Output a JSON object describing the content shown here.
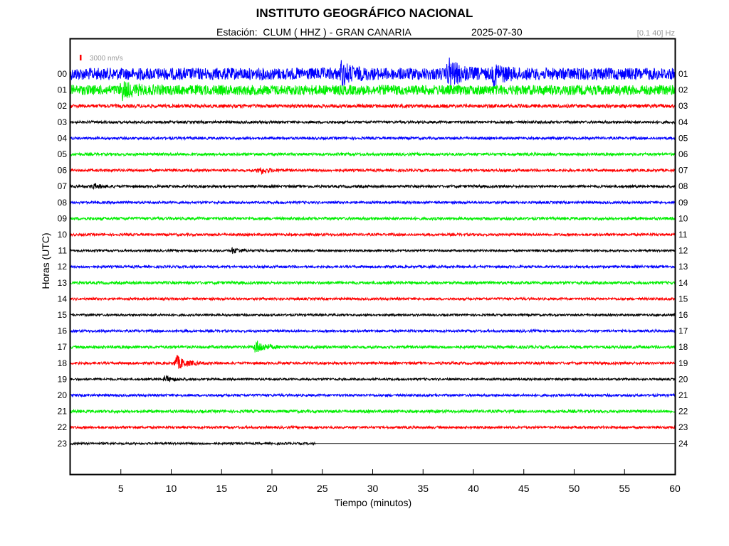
{
  "header": {
    "title": "INSTITUTO GEOGRÁFICO NACIONAL",
    "station_line": "Estación:  CLUM ( HHZ ) - GRAN CANARIA",
    "date": "2025-07-30",
    "filter": "[0.1 40] Hz"
  },
  "chart_data": {
    "type": "line",
    "title": "INSTITUTO GEOGRÁFICO NACIONAL",
    "xlabel": "Tiempo (minutos)",
    "ylabel": "Horas (UTC)",
    "xlim": [
      0,
      60
    ],
    "x_ticks": [
      5,
      10,
      15,
      20,
      25,
      30,
      35,
      40,
      45,
      50,
      55,
      60
    ],
    "scale_label": "3000 nm/s",
    "scale_color": "#ff0000",
    "left_hour_labels": [
      "00",
      "01",
      "02",
      "03",
      "04",
      "05",
      "06",
      "07",
      "08",
      "09",
      "10",
      "11",
      "12",
      "13",
      "14",
      "15",
      "16",
      "17",
      "18",
      "19",
      "20",
      "21",
      "22",
      "23"
    ],
    "right_hour_labels": [
      "01",
      "02",
      "03",
      "04",
      "05",
      "06",
      "07",
      "08",
      "09",
      "10",
      "11",
      "12",
      "13",
      "14",
      "15",
      "16",
      "17",
      "18",
      "19",
      "20",
      "21",
      "22",
      "23",
      "24"
    ],
    "trace_colors": [
      "#0000ff",
      "#00ee00",
      "#ff0000",
      "#000000"
    ],
    "grid": false,
    "data_end_minute": 24.3,
    "traces": [
      {
        "hour": "00",
        "noise_level": 0.85,
        "events": [
          {
            "minute": 26.8,
            "peak": 1.4
          },
          {
            "minute": 37.5,
            "peak": 1.9
          },
          {
            "minute": 42.0,
            "peak": 1.2
          }
        ]
      },
      {
        "hour": "01",
        "noise_level": 0.7,
        "events": [
          {
            "minute": 5.0,
            "peak": 1.1
          }
        ]
      },
      {
        "hour": "02",
        "noise_level": 0.25,
        "events": []
      },
      {
        "hour": "03",
        "noise_level": 0.18,
        "events": []
      },
      {
        "hour": "04",
        "noise_level": 0.18,
        "events": []
      },
      {
        "hour": "05",
        "noise_level": 0.2,
        "events": []
      },
      {
        "hour": "06",
        "noise_level": 0.18,
        "events": [
          {
            "minute": 18.6,
            "peak": 0.55
          }
        ]
      },
      {
        "hour": "07",
        "noise_level": 0.18,
        "events": [
          {
            "minute": 2.1,
            "peak": 0.35
          }
        ]
      },
      {
        "hour": "08",
        "noise_level": 0.17,
        "events": []
      },
      {
        "hour": "09",
        "noise_level": 0.2,
        "events": []
      },
      {
        "hour": "10",
        "noise_level": 0.18,
        "events": []
      },
      {
        "hour": "11",
        "noise_level": 0.15,
        "events": [
          {
            "minute": 16.0,
            "peak": 0.4
          }
        ]
      },
      {
        "hour": "12",
        "noise_level": 0.17,
        "events": []
      },
      {
        "hour": "13",
        "noise_level": 0.2,
        "events": []
      },
      {
        "hour": "14",
        "noise_level": 0.17,
        "events": []
      },
      {
        "hour": "15",
        "noise_level": 0.15,
        "events": []
      },
      {
        "hour": "16",
        "noise_level": 0.17,
        "events": []
      },
      {
        "hour": "17",
        "noise_level": 0.2,
        "events": [
          {
            "minute": 18.3,
            "peak": 1.0
          }
        ]
      },
      {
        "hour": "18",
        "noise_level": 0.18,
        "events": [
          {
            "minute": 10.4,
            "peak": 1.15
          }
        ]
      },
      {
        "hour": "19",
        "noise_level": 0.15,
        "events": [
          {
            "minute": 9.3,
            "peak": 0.45
          }
        ]
      },
      {
        "hour": "20",
        "noise_level": 0.17,
        "events": []
      },
      {
        "hour": "21",
        "noise_level": 0.2,
        "events": []
      },
      {
        "hour": "22",
        "noise_level": 0.17,
        "events": []
      },
      {
        "hour": "23",
        "noise_level": 0.15,
        "events": []
      }
    ]
  }
}
